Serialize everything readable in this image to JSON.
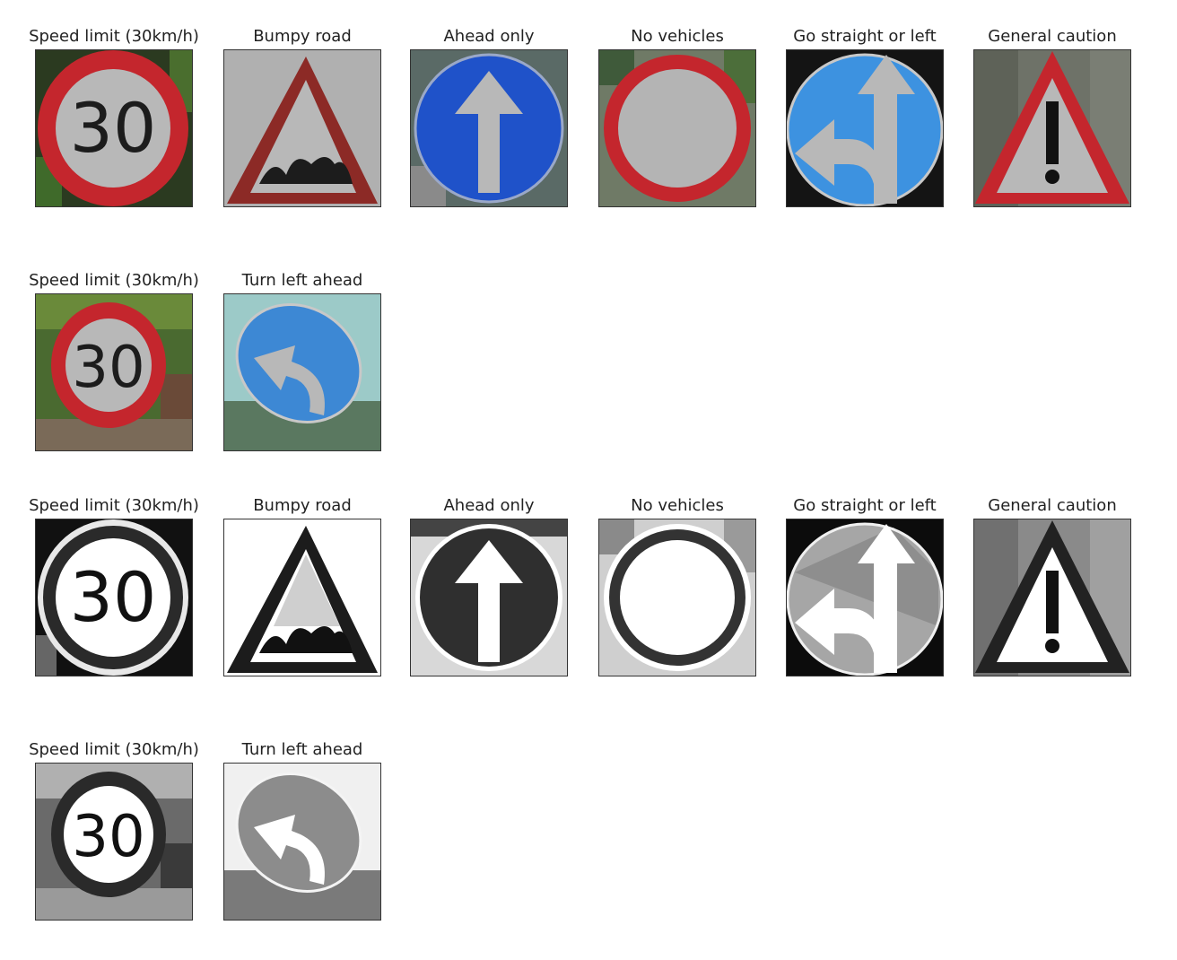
{
  "colors": {
    "sign_red": "#c4262d",
    "sign_blue": "#1f52c9",
    "sign_light_blue": "#3d92e0",
    "sign_face": "#b4b4b4",
    "ink": "#1c1c1c",
    "caption": "#222222"
  },
  "rows": [
    {
      "style": "color",
      "panels": [
        {
          "label": "Speed limit (30km/h)",
          "sign_text": "30",
          "icon": "speed-limit-sign-icon"
        },
        {
          "label": "Bumpy road",
          "icon": "bumpy-road-sign-icon"
        },
        {
          "label": "Ahead only",
          "icon": "ahead-only-sign-icon"
        },
        {
          "label": "No vehicles",
          "icon": "no-vehicles-sign-icon"
        },
        {
          "label": "Go straight or left",
          "icon": "straight-or-left-sign-icon"
        },
        {
          "label": "General caution",
          "icon": "general-caution-sign-icon"
        }
      ]
    },
    {
      "style": "color",
      "panels": [
        {
          "label": "Speed limit (30km/h)",
          "sign_text": "30",
          "icon": "speed-limit-sign-icon"
        },
        {
          "label": "Turn left ahead",
          "icon": "turn-left-ahead-sign-icon"
        }
      ]
    },
    {
      "style": "grayscale",
      "panels": [
        {
          "label": "Speed limit (30km/h)",
          "sign_text": "30",
          "icon": "speed-limit-sign-icon"
        },
        {
          "label": "Bumpy road",
          "icon": "bumpy-road-sign-icon"
        },
        {
          "label": "Ahead only",
          "icon": "ahead-only-sign-icon"
        },
        {
          "label": "No vehicles",
          "icon": "no-vehicles-sign-icon"
        },
        {
          "label": "Go straight or left",
          "icon": "straight-or-left-sign-icon"
        },
        {
          "label": "General caution",
          "icon": "general-caution-sign-icon"
        }
      ]
    },
    {
      "style": "grayscale",
      "panels": [
        {
          "label": "Speed limit (30km/h)",
          "sign_text": "30",
          "icon": "speed-limit-sign-icon"
        },
        {
          "label": "Turn left ahead",
          "icon": "turn-left-ahead-sign-icon"
        }
      ]
    }
  ]
}
